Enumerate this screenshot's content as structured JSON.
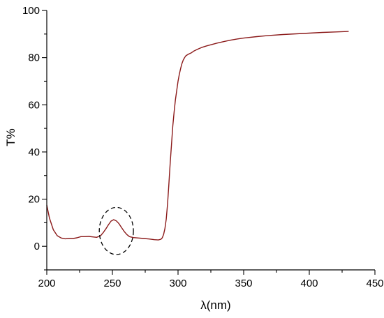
{
  "chart_data": {
    "type": "line",
    "title": "",
    "xlabel": "λ(nm)",
    "ylabel": "T%",
    "xlim": [
      200,
      450
    ],
    "ylim": [
      -10,
      100
    ],
    "x_ticks": [
      200,
      250,
      300,
      350,
      400,
      450
    ],
    "y_ticks": [
      0,
      20,
      40,
      60,
      80,
      100
    ],
    "x_tick_labels": [
      "200",
      "250",
      "300",
      "350",
      "400",
      "450"
    ],
    "y_tick_labels": [
      "0",
      "20",
      "40",
      "60",
      "80",
      "100"
    ],
    "grid": false,
    "legend": "none",
    "line_color": "#8b1a1a",
    "series": [
      {
        "x": [
          200,
          202,
          205,
          208,
          211,
          214,
          217,
          220,
          223,
          226,
          229,
          232,
          235,
          238,
          241,
          243,
          245,
          247,
          249,
          251,
          253,
          255,
          257,
          259,
          261,
          263,
          266,
          270,
          274,
          278,
          282,
          285,
          287,
          288,
          289,
          290,
          291,
          292,
          293,
          294,
          295,
          296,
          297,
          298,
          299,
          300,
          301,
          302,
          303,
          304,
          305,
          306,
          308,
          310,
          312,
          315,
          318,
          322,
          326,
          330,
          335,
          340,
          345,
          350,
          360,
          370,
          380,
          390,
          400,
          410,
          420,
          430
        ],
        "y": [
          17.5,
          12,
          7,
          4.5,
          3.5,
          3.2,
          3.3,
          3.3,
          3.6,
          4.1,
          4.1,
          4.2,
          4,
          3.8,
          4.5,
          5.8,
          7.4,
          9.2,
          10.7,
          11.3,
          10.8,
          9.6,
          7.9,
          6.3,
          5,
          4.1,
          3.7,
          3.5,
          3.3,
          3.1,
          2.8,
          2.7,
          3,
          3.6,
          5,
          7.5,
          11.5,
          18,
          26,
          35,
          43,
          51,
          57,
          62,
          66,
          70,
          73,
          75.5,
          77.5,
          79,
          80,
          80.8,
          81.5,
          82,
          82.8,
          83.6,
          84.3,
          85,
          85.6,
          86.2,
          86.8,
          87.4,
          87.9,
          88.3,
          88.9,
          89.4,
          89.8,
          90.1,
          90.4,
          90.7,
          90.9,
          91.1
        ]
      }
    ],
    "annotations": [
      {
        "type": "dashed-ellipse",
        "center_x": 253,
        "center_y": 6.5,
        "half_width_x": 13,
        "half_height_y": 10
      }
    ]
  }
}
